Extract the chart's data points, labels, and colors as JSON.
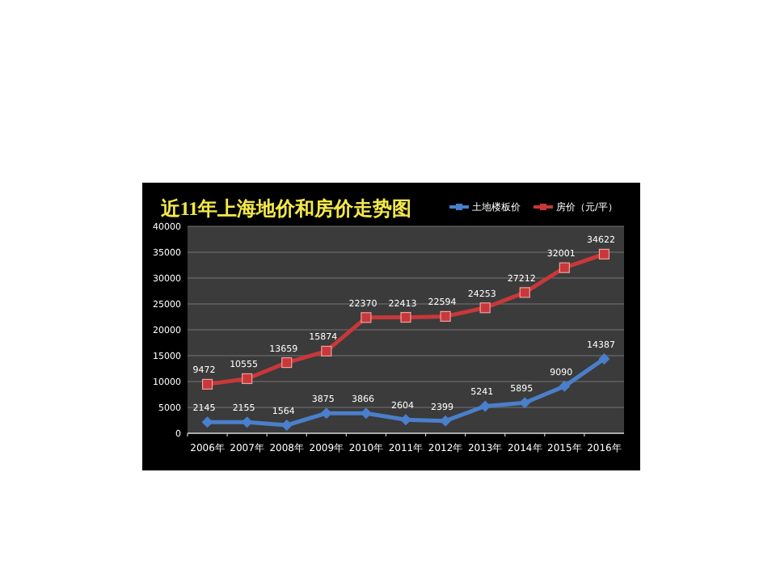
{
  "chart_data": {
    "type": "line",
    "title": "近11年上海地价和房价走势图",
    "categories": [
      "2006年",
      "2007年",
      "2008年",
      "2009年",
      "2010年",
      "2011年",
      "2012年",
      "2013年",
      "2014年",
      "2015年",
      "2016年"
    ],
    "series": [
      {
        "name": "土地楼板价",
        "color": "#4a7fcb",
        "marker": "diamond",
        "values": [
          2145,
          2155,
          1564,
          3875,
          3866,
          2604,
          2399,
          5241,
          5895,
          9090,
          14387
        ]
      },
      {
        "name": "房价（元/平）",
        "color": "#c8383a",
        "marker": "square",
        "values": [
          9472,
          10555,
          13659,
          15874,
          22370,
          22413,
          22594,
          24253,
          27212,
          32001,
          34622
        ]
      }
    ],
    "ylim": [
      0,
      40000
    ],
    "yticks": [
      0,
      5000,
      10000,
      15000,
      20000,
      25000,
      30000,
      35000,
      40000
    ],
    "grid": "y",
    "legend": "top right",
    "data_labels": true,
    "line_style": "solid"
  }
}
